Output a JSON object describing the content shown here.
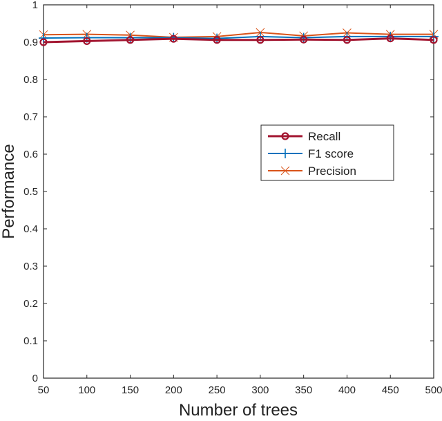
{
  "chart_data": {
    "type": "line",
    "title": "",
    "xlabel": "Number of trees",
    "ylabel": "Performance",
    "xlim": [
      50,
      500
    ],
    "ylim": [
      0,
      1
    ],
    "grid": false,
    "legend_placement": "center-right",
    "x": [
      50,
      100,
      150,
      200,
      250,
      300,
      350,
      400,
      450,
      500
    ],
    "x_ticks": [
      "50",
      "100",
      "150",
      "200",
      "250",
      "300",
      "350",
      "400",
      "450",
      "500"
    ],
    "y_ticks": [
      "0",
      "0.1",
      "0.2",
      "0.3",
      "0.4",
      "0.5",
      "0.6",
      "0.7",
      "0.8",
      "0.9",
      "1"
    ],
    "series": [
      {
        "name": "Recall",
        "color": "#a2142f",
        "marker": "circle",
        "values": [
          0.9,
          0.903,
          0.906,
          0.909,
          0.906,
          0.906,
          0.907,
          0.906,
          0.91,
          0.906
        ]
      },
      {
        "name": "F1 score",
        "color": "#0072bd",
        "marker": "plus",
        "values": [
          0.911,
          0.912,
          0.912,
          0.912,
          0.91,
          0.915,
          0.912,
          0.915,
          0.915,
          0.915
        ]
      },
      {
        "name": "Precision",
        "color": "#d95319",
        "marker": "x",
        "values": [
          0.92,
          0.921,
          0.919,
          0.913,
          0.915,
          0.926,
          0.917,
          0.925,
          0.921,
          0.921
        ]
      }
    ]
  }
}
